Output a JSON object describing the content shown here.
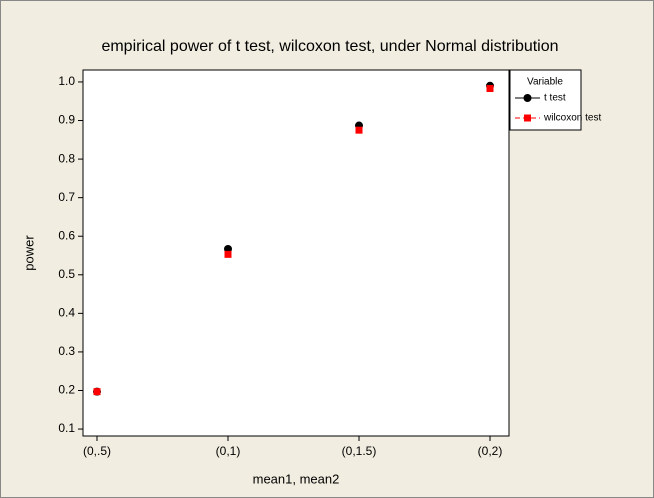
{
  "chart_data": {
    "type": "line",
    "title": "empirical power of t test, wilcoxon test, under Normal distribution",
    "x_label": "mean1, mean2",
    "y_label": "power",
    "categories": [
      "(0,.5)",
      "(0,1)",
      "(0,1.5)",
      "(0,2)"
    ],
    "series": [
      {
        "name": "t test",
        "color": "#000000",
        "marker": "circle",
        "linestyle": "solid",
        "values": [
          0.197,
          0.567,
          0.887,
          0.99
        ]
      },
      {
        "name": "wilcoxon test",
        "color": "#ff0000",
        "marker": "square",
        "linestyle": "dashed",
        "values": [
          0.197,
          0.553,
          0.875,
          0.983
        ]
      }
    ],
    "ylim": [
      0.082,
      1.031
    ],
    "yticks": [
      {
        "value": 0.1,
        "label": "0.1"
      },
      {
        "value": 0.2,
        "label": "0.2"
      },
      {
        "value": 0.3,
        "label": "0.3"
      },
      {
        "value": 0.4,
        "label": "0.4"
      },
      {
        "value": 0.5,
        "label": "0.5"
      },
      {
        "value": 0.6,
        "label": "0.6"
      },
      {
        "value": 0.7,
        "label": "0.7"
      },
      {
        "value": 0.8,
        "label": "0.8"
      },
      {
        "value": 0.9,
        "label": "0.9"
      },
      {
        "value": 1.0,
        "label": "1.0"
      }
    ],
    "legend_title": "Variable",
    "legend": "right",
    "grid": false
  }
}
